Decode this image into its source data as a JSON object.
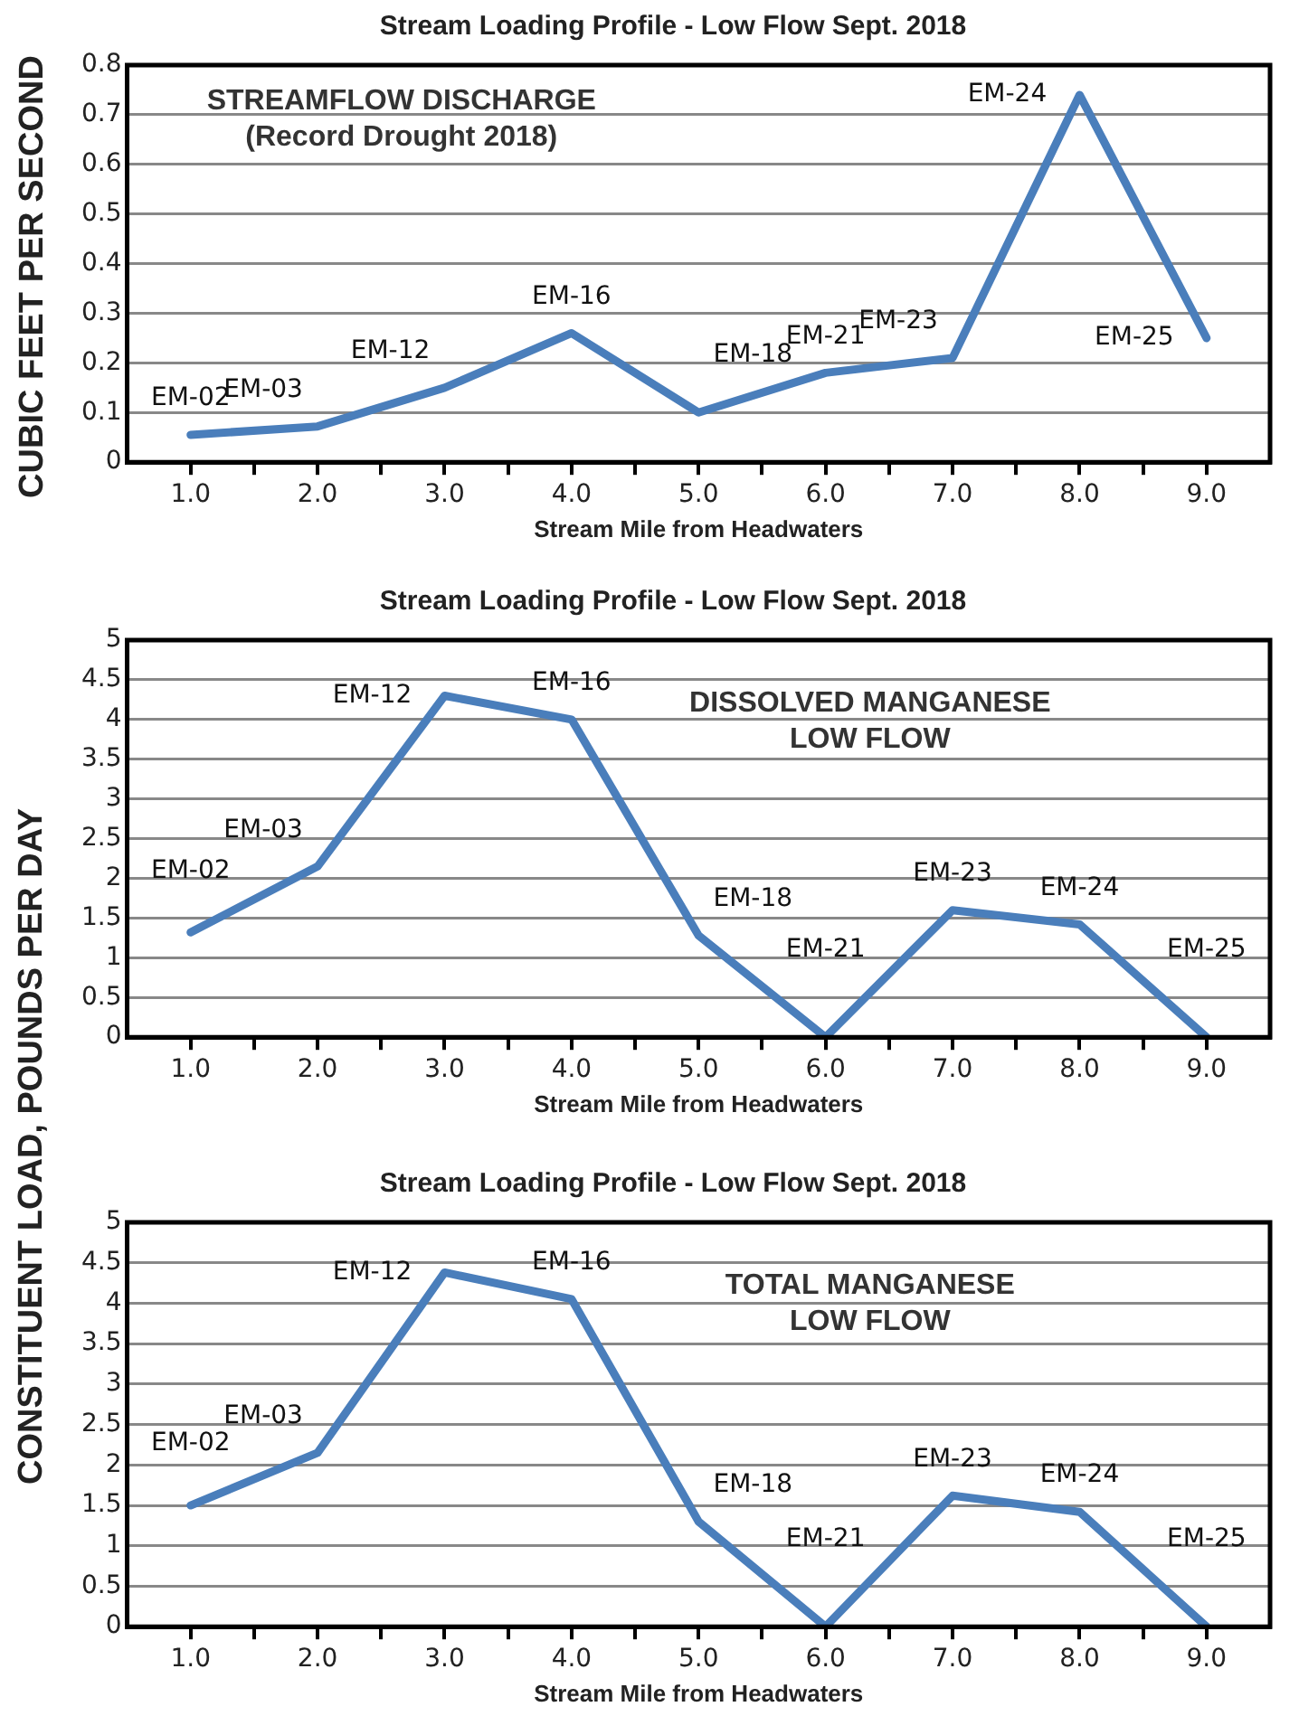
{
  "chart_data": [
    {
      "type": "line",
      "title": "Stream Loading Profile - Low Flow Sept. 2018",
      "xlabel": "Stream Mile from Headwaters",
      "ylabel": "CUBIC FEET PER SECOND",
      "x": [
        1,
        2,
        3,
        4,
        5,
        6,
        7,
        8,
        9
      ],
      "series": [
        {
          "color": "#4a7ebb",
          "values": [
            0.055,
            0.072,
            0.15,
            0.26,
            0.1,
            0.18,
            0.21,
            0.74,
            0.25
          ]
        }
      ],
      "xlim": [
        0.5,
        9.5
      ],
      "xticks": [
        {
          "value": 1,
          "label": "1.0"
        },
        {
          "value": 1.5,
          "label": null
        },
        {
          "value": 2,
          "label": "2.0"
        },
        {
          "value": 2.5,
          "label": null
        },
        {
          "value": 3,
          "label": "3.0"
        },
        {
          "value": 3.5,
          "label": null
        },
        {
          "value": 4,
          "label": "4.0"
        },
        {
          "value": 4.5,
          "label": null
        },
        {
          "value": 5,
          "label": "5.0"
        },
        {
          "value": 5.5,
          "label": null
        },
        {
          "value": 6,
          "label": "6.0"
        },
        {
          "value": 6.5,
          "label": null
        },
        {
          "value": 7,
          "label": "7.0"
        },
        {
          "value": 7.5,
          "label": null
        },
        {
          "value": 8,
          "label": "8.0"
        },
        {
          "value": 8.5,
          "label": null
        },
        {
          "value": 9,
          "label": "9.0"
        }
      ],
      "ylim": [
        0,
        0.8
      ],
      "yticks": [
        0,
        0.1,
        0.2,
        0.3,
        0.4,
        0.5,
        0.6,
        0.7,
        0.8
      ],
      "grid": "y",
      "legend": false,
      "marker": "none",
      "line_style": "solid",
      "annotations": [
        "STREAMFLOW DISCHARGE\n(Record Drought 2018)",
        {
          "text": "EM-02",
          "x": 1,
          "y": 0.055
        },
        {
          "text": "EM-03",
          "x": 2,
          "y": 0.072
        },
        {
          "text": "EM-12",
          "x": 3,
          "y": 0.15
        },
        {
          "text": "EM-16",
          "x": 4,
          "y": 0.26
        },
        {
          "text": "EM-18",
          "x": 5,
          "y": 0.1
        },
        {
          "text": "EM-21",
          "x": 6,
          "y": 0.18
        },
        {
          "text": "EM-23",
          "x": 7,
          "y": 0.21
        },
        {
          "text": "EM-24",
          "x": 8,
          "y": 0.74
        },
        {
          "text": "EM-25",
          "x": 9,
          "y": 0.25
        }
      ]
    },
    {
      "type": "line",
      "title": "Stream Loading Profile - Low Flow Sept. 2018",
      "xlabel": "Stream Mile from Headwaters",
      "ylabel": "CONSTITUENT LOAD, POUNDS PER DAY",
      "x": [
        1,
        2,
        3,
        4,
        5,
        6,
        7,
        8,
        9
      ],
      "series": [
        {
          "color": "#4a7ebb",
          "values": [
            1.32,
            2.15,
            4.3,
            4.0,
            1.28,
            0,
            1.6,
            1.42,
            0
          ]
        }
      ],
      "xlim": [
        0.5,
        9.5
      ],
      "xticks": [
        {
          "value": 1,
          "label": "1.0"
        },
        {
          "value": 1.5,
          "label": null
        },
        {
          "value": 2,
          "label": "2.0"
        },
        {
          "value": 2.5,
          "label": null
        },
        {
          "value": 3,
          "label": "3.0"
        },
        {
          "value": 3.5,
          "label": null
        },
        {
          "value": 4,
          "label": "4.0"
        },
        {
          "value": 4.5,
          "label": null
        },
        {
          "value": 5,
          "label": "5.0"
        },
        {
          "value": 5.5,
          "label": null
        },
        {
          "value": 6,
          "label": "6.0"
        },
        {
          "value": 6.5,
          "label": null
        },
        {
          "value": 7,
          "label": "7.0"
        },
        {
          "value": 7.5,
          "label": null
        },
        {
          "value": 8,
          "label": "8.0"
        },
        {
          "value": 8.5,
          "label": null
        },
        {
          "value": 9,
          "label": "9.0"
        }
      ],
      "ylim": [
        0,
        5
      ],
      "yticks": [
        0,
        0.5,
        1,
        1.5,
        2,
        2.5,
        3,
        3.5,
        4,
        4.5,
        5
      ],
      "grid": "y",
      "legend": false,
      "marker": "none",
      "line_style": "solid",
      "annotations": [
        "DISSOLVED MANGANESE\nLOW FLOW",
        {
          "text": "EM-02",
          "x": 1,
          "y": 1.32
        },
        {
          "text": "EM-03",
          "x": 2,
          "y": 2.15
        },
        {
          "text": "EM-12",
          "x": 3,
          "y": 4.3
        },
        {
          "text": "EM-16",
          "x": 4,
          "y": 4.0
        },
        {
          "text": "EM-18",
          "x": 5,
          "y": 1.28
        },
        {
          "text": "EM-21",
          "x": 6,
          "y": 0
        },
        {
          "text": "EM-23",
          "x": 7,
          "y": 1.6
        },
        {
          "text": "EM-24",
          "x": 8,
          "y": 1.42
        },
        {
          "text": "EM-25",
          "x": 9,
          "y": 0
        }
      ]
    },
    {
      "type": "line",
      "title": "Stream Loading Profile - Low Flow Sept. 2018",
      "xlabel": "Stream Mile from Headwaters",
      "x": [
        1,
        2,
        3,
        4,
        5,
        6,
        7,
        8,
        9
      ],
      "series": [
        {
          "color": "#4a7ebb",
          "values": [
            1.5,
            2.15,
            4.38,
            4.05,
            1.3,
            0,
            1.62,
            1.42,
            0
          ]
        }
      ],
      "xlim": [
        0.5,
        9.5
      ],
      "xticks": [
        {
          "value": 1,
          "label": "1.0"
        },
        {
          "value": 1.5,
          "label": null
        },
        {
          "value": 2,
          "label": "2.0"
        },
        {
          "value": 2.5,
          "label": null
        },
        {
          "value": 3,
          "label": "3.0"
        },
        {
          "value": 3.5,
          "label": null
        },
        {
          "value": 4,
          "label": "4.0"
        },
        {
          "value": 4.5,
          "label": null
        },
        {
          "value": 5,
          "label": "5.0"
        },
        {
          "value": 5.5,
          "label": null
        },
        {
          "value": 6,
          "label": "6.0"
        },
        {
          "value": 6.5,
          "label": null
        },
        {
          "value": 7,
          "label": "7.0"
        },
        {
          "value": 7.5,
          "label": null
        },
        {
          "value": 8,
          "label": "8.0"
        },
        {
          "value": 8.5,
          "label": null
        },
        {
          "value": 9,
          "label": "9.0"
        }
      ],
      "ylim": [
        0,
        5
      ],
      "yticks": [
        0,
        0.5,
        1,
        1.5,
        2,
        2.5,
        3,
        3.5,
        4,
        4.5,
        5
      ],
      "grid": "y",
      "legend": false,
      "marker": "none",
      "line_style": "solid",
      "annotations": [
        "TOTAL MANGANESE\nLOW FLOW",
        {
          "text": "EM-02",
          "x": 1,
          "y": 1.5
        },
        {
          "text": "EM-03",
          "x": 2,
          "y": 2.15
        },
        {
          "text": "EM-12",
          "x": 3,
          "y": 4.38
        },
        {
          "text": "EM-16",
          "x": 4,
          "y": 4.05
        },
        {
          "text": "EM-18",
          "x": 5,
          "y": 1.3
        },
        {
          "text": "EM-21",
          "x": 6,
          "y": 0
        },
        {
          "text": "EM-23",
          "x": 7,
          "y": 1.62
        },
        {
          "text": "EM-24",
          "x": 8,
          "y": 1.42
        },
        {
          "text": "EM-25",
          "x": 9,
          "y": 0
        }
      ]
    }
  ]
}
